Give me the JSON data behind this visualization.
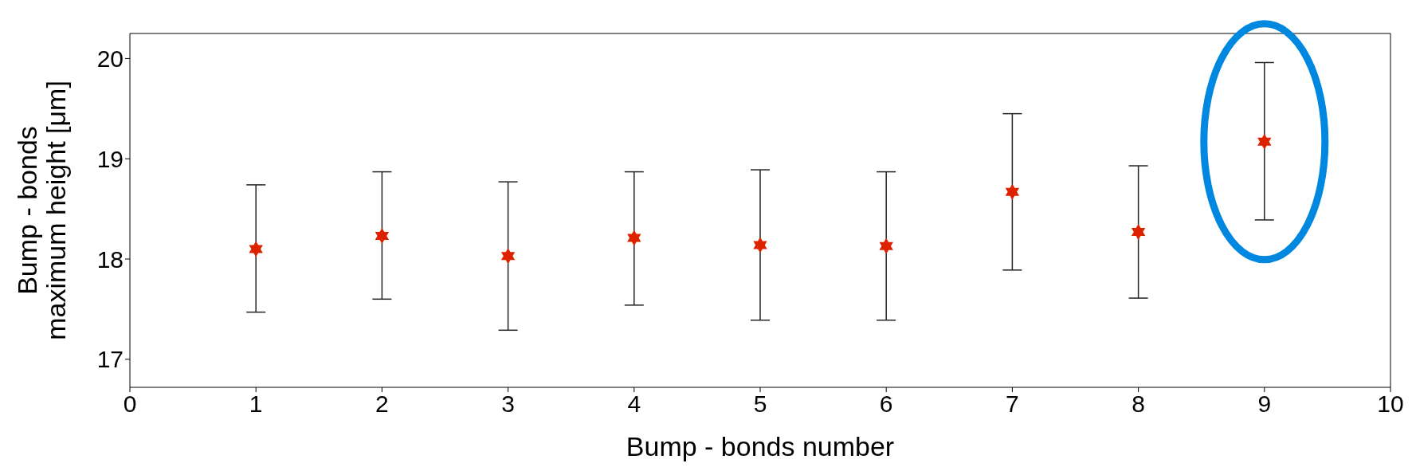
{
  "chart_data": {
    "type": "scatter",
    "xlabel": "Bump - bonds number",
    "ylabel": "Bump - bonds\nmaximum height [μm]",
    "x": [
      1,
      2,
      3,
      4,
      5,
      6,
      7,
      8,
      9
    ],
    "values": [
      18.1,
      18.23,
      18.03,
      18.21,
      18.14,
      18.13,
      18.67,
      18.27,
      19.17
    ],
    "errors": [
      [
        17.47,
        18.74
      ],
      [
        17.6,
        18.87
      ],
      [
        17.29,
        18.77
      ],
      [
        17.54,
        18.87
      ],
      [
        17.39,
        18.89
      ],
      [
        17.39,
        18.87
      ],
      [
        17.89,
        19.45
      ],
      [
        17.61,
        18.93
      ],
      [
        18.39,
        19.96
      ]
    ],
    "color": "#dd2200",
    "marker": "star",
    "xlim": [
      0,
      10
    ],
    "xticks": [
      0,
      1,
      2,
      3,
      4,
      5,
      6,
      7,
      8,
      9,
      10
    ],
    "ylim": [
      16.72,
      20.25
    ],
    "yticks": [
      17,
      18,
      19,
      20
    ],
    "grid": false,
    "legend": false
  }
}
